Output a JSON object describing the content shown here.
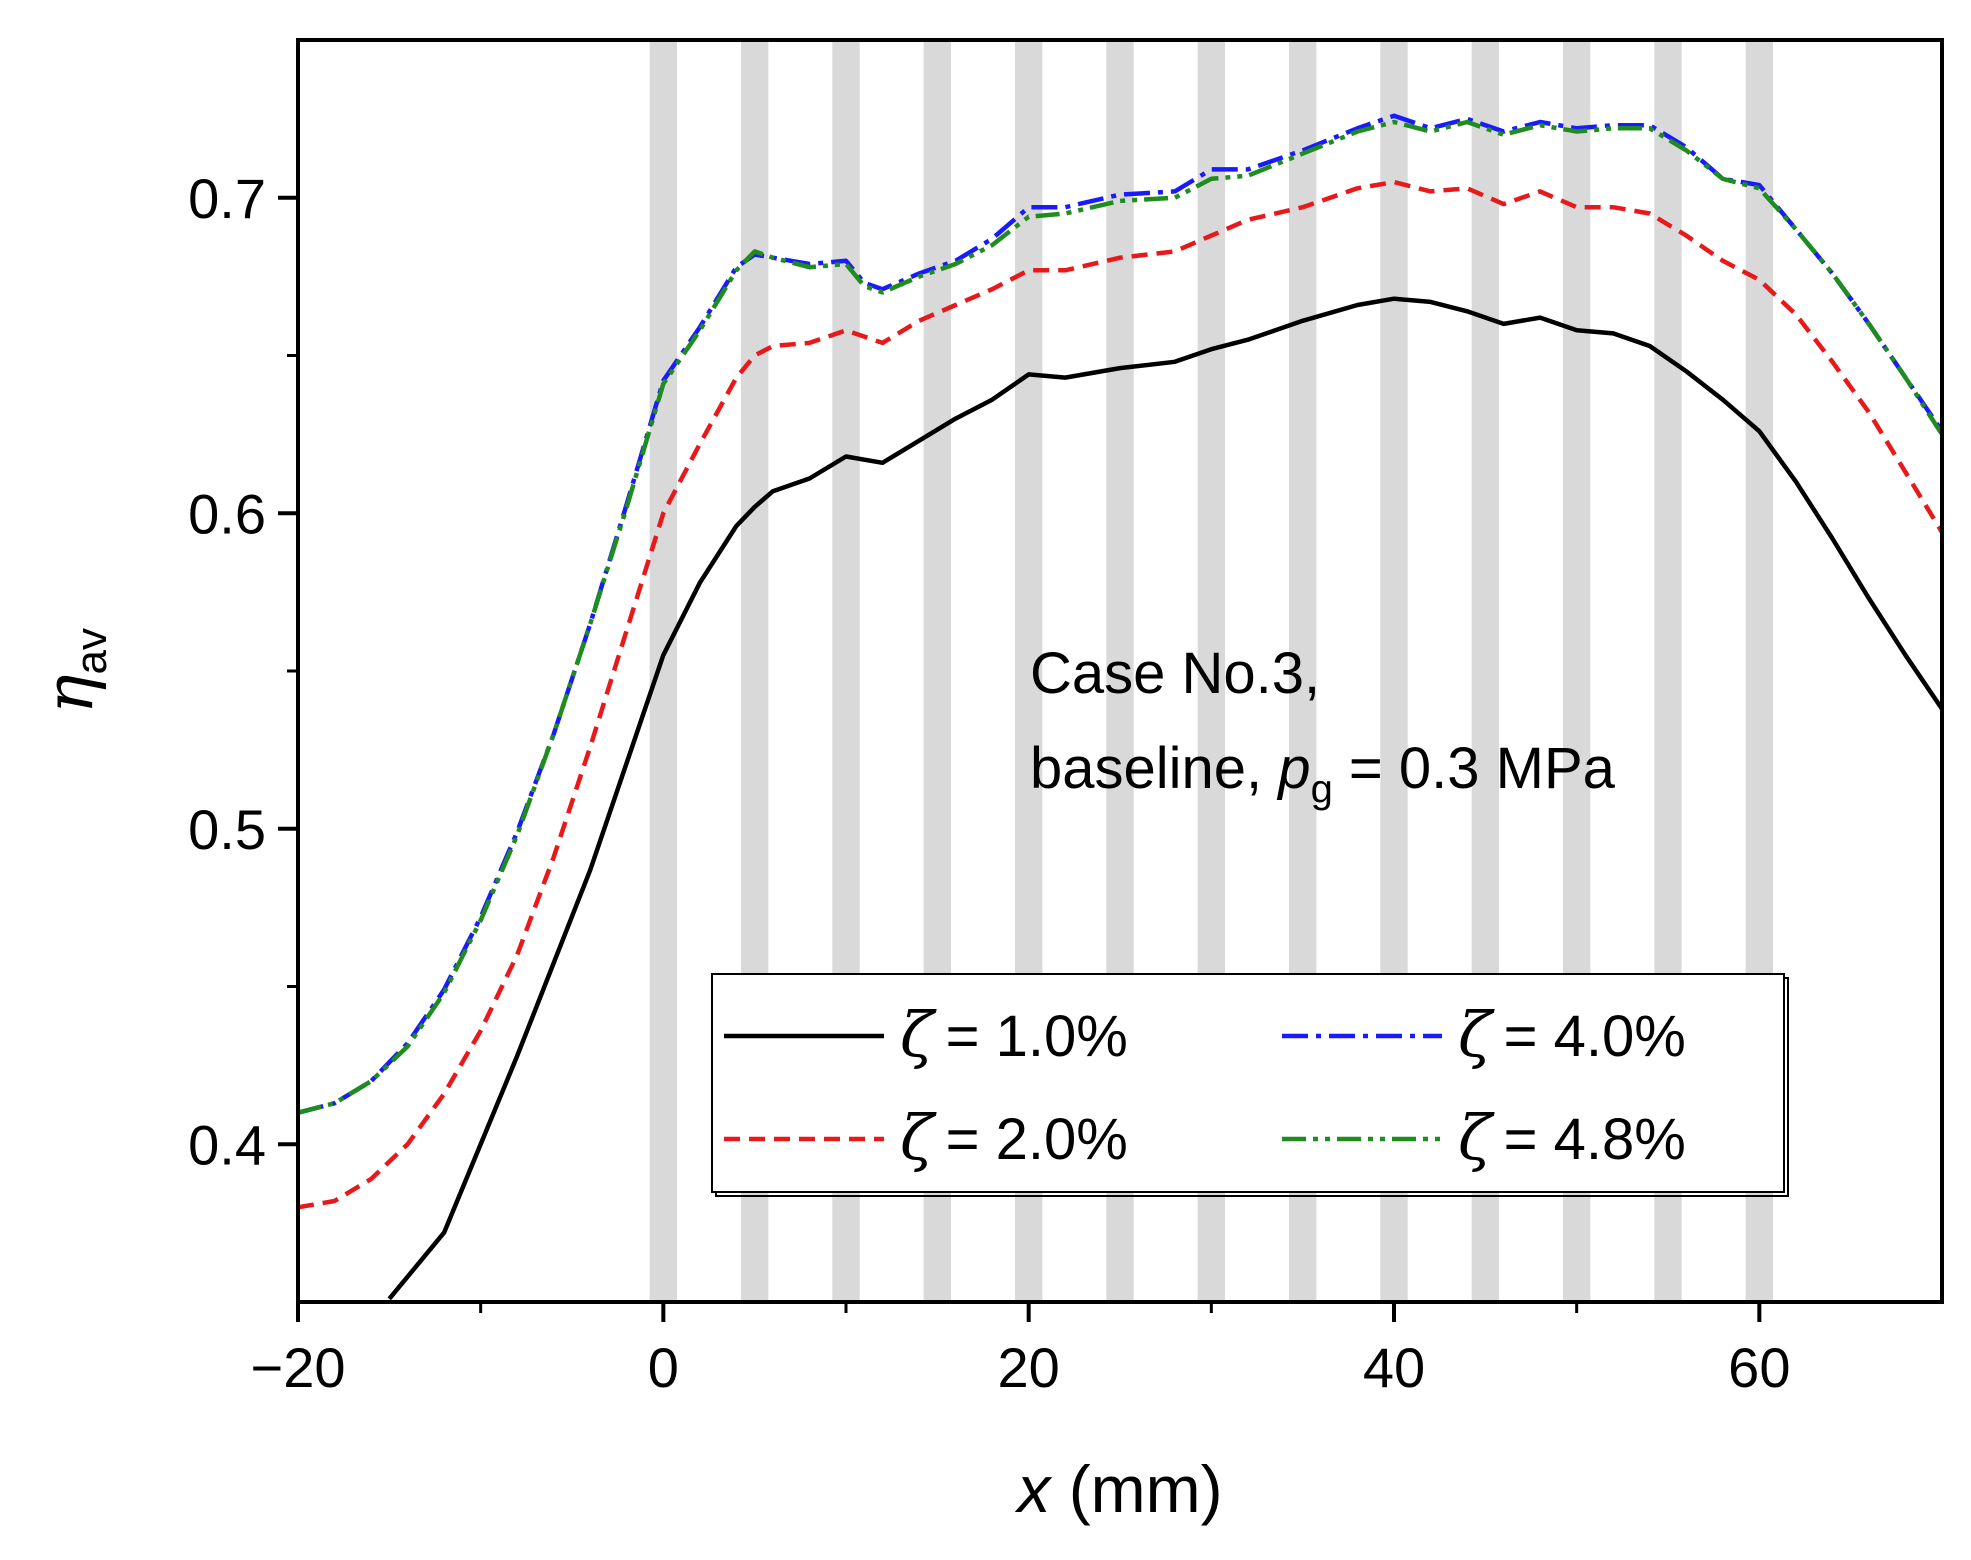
{
  "chart_data": {
    "type": "line",
    "title": "",
    "xlabel": {
      "var": "x",
      "unit": " (mm)"
    },
    "ylabel": {
      "var": "η",
      "sub": "av"
    },
    "xlim": [
      -20,
      70
    ],
    "ylim": [
      0.35,
      0.75
    ],
    "xticks": [
      -20,
      0,
      20,
      40,
      60
    ],
    "xtick_labels": [
      "−20",
      "0",
      "20",
      "40",
      "60"
    ],
    "xminor": [
      -10,
      10,
      30,
      50
    ],
    "yticks": [
      0.4,
      0.5,
      0.6,
      0.7
    ],
    "ytick_labels": [
      "0.4",
      "0.5",
      "0.6",
      "0.7"
    ],
    "yminor": [
      0.45,
      0.55,
      0.65
    ],
    "grid": false,
    "shaded_strips_x": [
      0,
      5,
      10,
      15,
      20,
      25,
      30,
      35,
      40,
      45,
      50,
      55,
      60
    ],
    "shaded_strip_width": 1.5,
    "annotation": {
      "line1": "Case No.3,",
      "line2_prefix": "baseline, ",
      "line2_var": "p",
      "line2_sub": "g",
      "line2_suffix": " = 0.3 MPa"
    },
    "legend_position": "lower-right",
    "series": [
      {
        "name": "ζ = 1.0%",
        "symbol": "ζ",
        "label": "= 1.0%",
        "color": "#000000",
        "dash": "solid",
        "x": [
          -15,
          -12,
          -8,
          -4,
          -2,
          0,
          2,
          4,
          5,
          6,
          8,
          10,
          12,
          14,
          16,
          18,
          20,
          22,
          25,
          28,
          30,
          32,
          35,
          38,
          40,
          42,
          44,
          46,
          48,
          50,
          52,
          54,
          56,
          58,
          60,
          62,
          64,
          66,
          68,
          70
        ],
        "values": [
          0.351,
          0.372,
          0.428,
          0.487,
          0.521,
          0.555,
          0.578,
          0.596,
          0.602,
          0.607,
          0.611,
          0.618,
          0.616,
          0.623,
          0.63,
          0.636,
          0.644,
          0.643,
          0.646,
          0.648,
          0.652,
          0.655,
          0.661,
          0.666,
          0.668,
          0.667,
          0.664,
          0.66,
          0.662,
          0.658,
          0.657,
          0.653,
          0.645,
          0.636,
          0.626,
          0.61,
          0.592,
          0.573,
          0.555,
          0.538
        ]
      },
      {
        "name": "ζ = 2.0%",
        "symbol": "ζ",
        "label": "= 2.0%",
        "color": "#e8191b",
        "dash": "dashed",
        "x": [
          -20,
          -18,
          -16,
          -14,
          -12,
          -10,
          -8,
          -6,
          -4,
          -2,
          0,
          2,
          4,
          5,
          6,
          8,
          10,
          12,
          14,
          16,
          18,
          20,
          22,
          25,
          28,
          30,
          32,
          35,
          38,
          40,
          42,
          44,
          46,
          48,
          50,
          52,
          54,
          56,
          58,
          60,
          62,
          64,
          66,
          68,
          70
        ],
        "values": [
          0.38,
          0.382,
          0.389,
          0.4,
          0.416,
          0.436,
          0.46,
          0.491,
          0.526,
          0.563,
          0.6,
          0.622,
          0.643,
          0.65,
          0.653,
          0.654,
          0.658,
          0.654,
          0.661,
          0.666,
          0.671,
          0.677,
          0.677,
          0.681,
          0.683,
          0.688,
          0.693,
          0.697,
          0.703,
          0.705,
          0.702,
          0.703,
          0.698,
          0.702,
          0.697,
          0.697,
          0.695,
          0.688,
          0.68,
          0.674,
          0.663,
          0.648,
          0.632,
          0.613,
          0.594
        ]
      },
      {
        "name": "ζ = 4.0%",
        "symbol": "ζ",
        "label": "= 4.0%",
        "color": "#1a1aff",
        "dash": "dashdot",
        "x": [
          -20,
          -18,
          -16,
          -14,
          -12,
          -10,
          -8,
          -6,
          -4,
          -2,
          0,
          2,
          4,
          5,
          6,
          8,
          10,
          11,
          12,
          14,
          16,
          18,
          20,
          22,
          25,
          28,
          30,
          32,
          35,
          38,
          40,
          42,
          44,
          46,
          48,
          50,
          52,
          54,
          56,
          58,
          60,
          62,
          64,
          66,
          68,
          70
        ],
        "values": [
          0.41,
          0.413,
          0.42,
          0.432,
          0.449,
          0.472,
          0.499,
          0.53,
          0.565,
          0.603,
          0.642,
          0.659,
          0.678,
          0.682,
          0.681,
          0.679,
          0.68,
          0.673,
          0.671,
          0.676,
          0.68,
          0.687,
          0.697,
          0.697,
          0.701,
          0.702,
          0.709,
          0.709,
          0.715,
          0.722,
          0.726,
          0.722,
          0.725,
          0.721,
          0.724,
          0.722,
          0.723,
          0.723,
          0.716,
          0.706,
          0.704,
          0.69,
          0.676,
          0.66,
          0.643,
          0.626
        ]
      },
      {
        "name": "ζ = 4.8%",
        "symbol": "ζ",
        "label": "= 4.8%",
        "color": "#1e8c1e",
        "dash": "dashdotdot",
        "x": [
          -20,
          -18,
          -16,
          -14,
          -12,
          -10,
          -8,
          -6,
          -4,
          -2,
          0,
          2,
          4,
          5,
          6,
          8,
          10,
          11,
          12,
          14,
          16,
          18,
          20,
          22,
          25,
          28,
          30,
          32,
          35,
          38,
          40,
          42,
          44,
          46,
          48,
          50,
          52,
          54,
          56,
          58,
          60,
          62,
          64,
          66,
          68,
          70
        ],
        "values": [
          0.41,
          0.413,
          0.42,
          0.431,
          0.448,
          0.471,
          0.498,
          0.53,
          0.565,
          0.602,
          0.641,
          0.658,
          0.677,
          0.683,
          0.681,
          0.678,
          0.679,
          0.672,
          0.67,
          0.675,
          0.679,
          0.685,
          0.694,
          0.695,
          0.699,
          0.7,
          0.706,
          0.707,
          0.714,
          0.721,
          0.724,
          0.721,
          0.724,
          0.72,
          0.723,
          0.721,
          0.722,
          0.722,
          0.715,
          0.706,
          0.703,
          0.69,
          0.676,
          0.66,
          0.643,
          0.625
        ]
      }
    ]
  }
}
